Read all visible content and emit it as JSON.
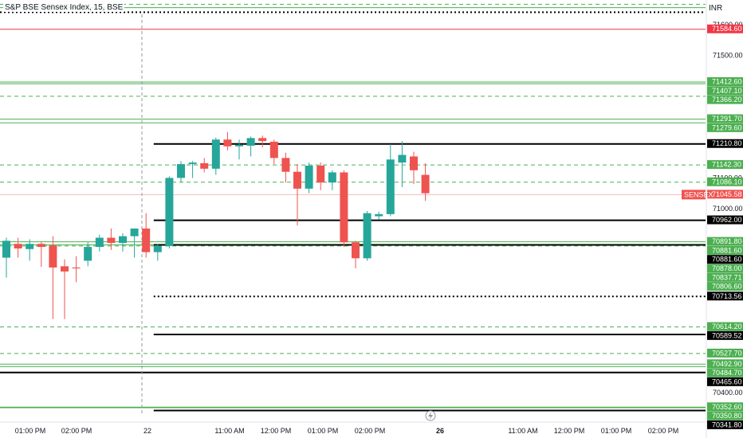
{
  "chart_data": {
    "type": "candlestick",
    "title": "S&P BSE Sensex Index, 15, BSE",
    "currency": "INR",
    "ylim": [
      70330,
      71680
    ],
    "price_ticks": [
      "71600.00",
      "71500.00",
      "71100.00",
      "71000.00",
      "70400.00"
    ],
    "time_labels": [
      "01:00 PM",
      "02:00 PM",
      "22",
      "11:00 AM",
      "12:00 PM",
      "01:00 PM",
      "02:00 PM",
      "26",
      "11:00 AM",
      "12:00 PM",
      "01:00 PM",
      "02:00 PM"
    ],
    "current_price": {
      "label": "SENSEX",
      "value": "71045.58"
    },
    "colors": {
      "up": "#26a69a",
      "down": "#ef5350",
      "level_green": "#4caf50",
      "level_red": "#f23645",
      "level_black": "#000000",
      "separator": "#9598a1"
    },
    "candles": [
      {
        "o": 70840,
        "h": 70905,
        "l": 70775,
        "c": 70895
      },
      {
        "o": 70885,
        "h": 70905,
        "l": 70840,
        "c": 70870
      },
      {
        "o": 70868,
        "h": 70900,
        "l": 70830,
        "c": 70885
      },
      {
        "o": 70885,
        "h": 70890,
        "l": 70810,
        "c": 70875
      },
      {
        "o": 70880,
        "h": 70910,
        "l": 70640,
        "c": 70808
      },
      {
        "o": 70812,
        "h": 70835,
        "l": 70640,
        "c": 70795
      },
      {
        "o": 70808,
        "h": 70845,
        "l": 70760,
        "c": 70805
      },
      {
        "o": 70830,
        "h": 70890,
        "l": 70812,
        "c": 70875
      },
      {
        "o": 70875,
        "h": 70915,
        "l": 70860,
        "c": 70905
      },
      {
        "o": 70905,
        "h": 70935,
        "l": 70865,
        "c": 70888
      },
      {
        "o": 70888,
        "h": 70920,
        "l": 70860,
        "c": 70910
      },
      {
        "o": 70910,
        "h": 70935,
        "l": 70840,
        "c": 70935
      },
      {
        "o": 70935,
        "h": 70985,
        "l": 70840,
        "c": 70858
      },
      {
        "o": 70858,
        "h": 70885,
        "l": 70830,
        "c": 70878
      },
      {
        "o": 70878,
        "h": 71105,
        "l": 70870,
        "c": 71100
      },
      {
        "o": 71100,
        "h": 71155,
        "l": 71085,
        "c": 71145
      },
      {
        "o": 71145,
        "h": 71155,
        "l": 71100,
        "c": 71150
      },
      {
        "o": 71148,
        "h": 71165,
        "l": 71118,
        "c": 71130
      },
      {
        "o": 71130,
        "h": 71232,
        "l": 71110,
        "c": 71225
      },
      {
        "o": 71225,
        "h": 71250,
        "l": 71190,
        "c": 71203
      },
      {
        "o": 71203,
        "h": 71225,
        "l": 71160,
        "c": 71208
      },
      {
        "o": 71205,
        "h": 71235,
        "l": 71170,
        "c": 71230
      },
      {
        "o": 71230,
        "h": 71238,
        "l": 71200,
        "c": 71220
      },
      {
        "o": 71218,
        "h": 71225,
        "l": 71145,
        "c": 71165
      },
      {
        "o": 71165,
        "h": 71182,
        "l": 71085,
        "c": 71120
      },
      {
        "o": 71120,
        "h": 71145,
        "l": 70945,
        "c": 71065
      },
      {
        "o": 71065,
        "h": 71150,
        "l": 71050,
        "c": 71140
      },
      {
        "o": 71140,
        "h": 71150,
        "l": 71060,
        "c": 71085
      },
      {
        "o": 71085,
        "h": 71125,
        "l": 71060,
        "c": 71118
      },
      {
        "o": 71118,
        "h": 71125,
        "l": 70875,
        "c": 70890
      },
      {
        "o": 70890,
        "h": 70895,
        "l": 70805,
        "c": 70838
      },
      {
        "o": 70838,
        "h": 70992,
        "l": 70830,
        "c": 70985
      },
      {
        "o": 70975,
        "h": 70990,
        "l": 70965,
        "c": 70982
      },
      {
        "o": 70982,
        "h": 71210,
        "l": 70975,
        "c": 71160
      },
      {
        "o": 71150,
        "h": 71220,
        "l": 71070,
        "c": 71175
      },
      {
        "o": 71170,
        "h": 71185,
        "l": 71080,
        "c": 71125
      },
      {
        "o": 71110,
        "h": 71148,
        "l": 71025,
        "c": 71050
      }
    ],
    "levels": [
      {
        "value": 71666,
        "label": "",
        "color": "#4caf50",
        "style": "dashed"
      },
      {
        "value": 71655,
        "label": "",
        "color": "#4caf50",
        "style": "solid"
      },
      {
        "value": 71640,
        "label": "",
        "color": "#000000",
        "style": "dotted"
      },
      {
        "value": 71584.6,
        "label": "71584.60",
        "color": "#f23645",
        "style": "solid"
      },
      {
        "value": 71412.6,
        "label": "71412.60",
        "color": "#4caf50",
        "style": "solid"
      },
      {
        "value": 71407.1,
        "label": "71407.10",
        "color": "#4caf50",
        "style": "solid"
      },
      {
        "value": 71366.2,
        "label": "71366.20",
        "color": "#4caf50",
        "style": "dashed"
      },
      {
        "value": 71291.7,
        "label": "71291.70",
        "color": "#4caf50",
        "style": "solid"
      },
      {
        "value": 71279.6,
        "label": "71279.60",
        "color": "#4caf50",
        "style": "solid"
      },
      {
        "value": 71210.8,
        "label": "71210.80",
        "color": "#000000",
        "style": "solid",
        "start_bar": 13
      },
      {
        "value": 71142.3,
        "label": "71142.30",
        "color": "#4caf50",
        "style": "dashed"
      },
      {
        "value": 71086.1,
        "label": "71086.10",
        "color": "#4caf50",
        "style": "dashed"
      },
      {
        "value": 70962.0,
        "label": "70962.00",
        "color": "#000000",
        "style": "solid",
        "start_bar": 13
      },
      {
        "value": 70891.8,
        "label": "70891.80",
        "color": "#4caf50",
        "style": "solid"
      },
      {
        "value": 70881.6,
        "label": "70881.60",
        "color": "#4caf50",
        "style": "solid"
      },
      {
        "value": 70881.6,
        "label": "70881.60",
        "color": "#000000",
        "style": "solid",
        "start_bar": 13
      },
      {
        "value": 70878.0,
        "label": "70878.00",
        "color": "#4caf50",
        "style": "dashed"
      },
      {
        "value": 70837.71,
        "label": "70837.71",
        "color": "#4caf50",
        "style": "none"
      },
      {
        "value": 70806.6,
        "label": "70806.60",
        "color": "#4caf50",
        "style": "none"
      },
      {
        "value": 70713.56,
        "label": "70713.56",
        "color": "#000000",
        "style": "dotted",
        "start_bar": 13
      },
      {
        "value": 70614.2,
        "label": "70614.20",
        "color": "#4caf50",
        "style": "dashed"
      },
      {
        "value": 70589.52,
        "label": "70589.52",
        "color": "#000000",
        "style": "solid",
        "start_bar": 13
      },
      {
        "value": 70527.7,
        "label": "70527.70",
        "color": "#4caf50",
        "style": "dashed"
      },
      {
        "value": 70492.9,
        "label": "70492.90",
        "color": "#4caf50",
        "style": "solid"
      },
      {
        "value": 70484.7,
        "label": "70484.70",
        "color": "#4caf50",
        "style": "solid"
      },
      {
        "value": 70465.6,
        "label": "70465.60",
        "color": "#000000",
        "style": "solid"
      },
      {
        "value": 70352.6,
        "label": "70352.60",
        "color": "#4caf50",
        "style": "solid"
      },
      {
        "value": 70350.8,
        "label": "70350.80",
        "color": "#4caf50",
        "style": "solid"
      },
      {
        "value": 70341.8,
        "label": "70341.80",
        "color": "#000000",
        "style": "solid",
        "start_bar": 13
      }
    ]
  }
}
